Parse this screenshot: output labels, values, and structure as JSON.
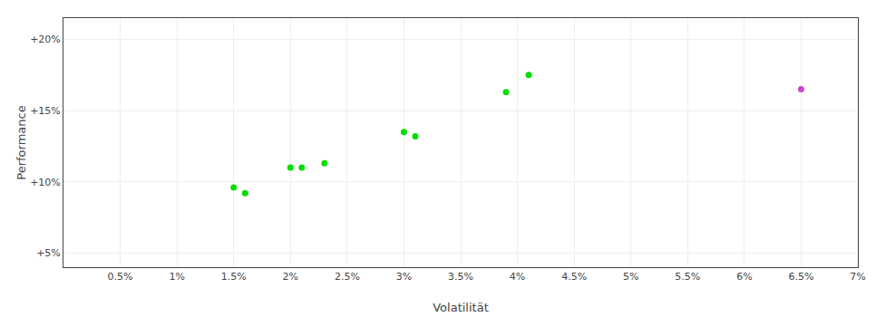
{
  "chart_data": {
    "type": "scatter",
    "xlabel": "Volatilität",
    "ylabel": "Performance",
    "xlim": [
      0.0,
      0.07
    ],
    "ylim": [
      0.04,
      0.215
    ],
    "xticks": [
      {
        "value": 0.005,
        "label": "0.5%"
      },
      {
        "value": 0.01,
        "label": "1%"
      },
      {
        "value": 0.015,
        "label": "1.5%"
      },
      {
        "value": 0.02,
        "label": "2%"
      },
      {
        "value": 0.025,
        "label": "2.5%"
      },
      {
        "value": 0.03,
        "label": "3%"
      },
      {
        "value": 0.035,
        "label": "3.5%"
      },
      {
        "value": 0.04,
        "label": "4%"
      },
      {
        "value": 0.045,
        "label": "4.5%"
      },
      {
        "value": 0.05,
        "label": "5%"
      },
      {
        "value": 0.055,
        "label": "5.5%"
      },
      {
        "value": 0.06,
        "label": "6%"
      },
      {
        "value": 0.065,
        "label": "6.5%"
      },
      {
        "value": 0.07,
        "label": "7%"
      }
    ],
    "yticks": [
      {
        "value": 0.05,
        "label": "+5%"
      },
      {
        "value": 0.1,
        "label": "+10%"
      },
      {
        "value": 0.15,
        "label": "+15%"
      },
      {
        "value": 0.2,
        "label": "+20%"
      }
    ],
    "grid": true,
    "series": [
      {
        "color": "#00dd00",
        "x": [
          0.015,
          0.016,
          0.02,
          0.021,
          0.023,
          0.03,
          0.031,
          0.039,
          0.041
        ],
        "values": [
          0.096,
          0.092,
          0.11,
          0.11,
          0.113,
          0.135,
          0.132,
          0.163,
          0.175
        ]
      },
      {
        "color": "#cc44cc",
        "x": [
          0.065
        ],
        "values": [
          0.165
        ]
      }
    ]
  }
}
